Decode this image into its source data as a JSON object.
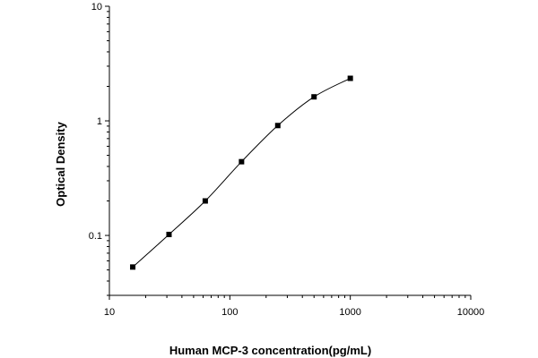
{
  "chart_data": {
    "type": "scatter",
    "title": "",
    "xlabel": "Human MCP-3 concentration(pg/mL)",
    "ylabel": "Optical Density",
    "x_scale": "log",
    "y_scale": "log",
    "xlim": [
      10,
      10000
    ],
    "ylim": [
      0.03,
      10
    ],
    "x_ticks": [
      10,
      100,
      1000,
      10000
    ],
    "x_tick_labels": [
      "10",
      "100",
      "1000",
      "10000"
    ],
    "y_ticks": [
      0.1,
      1,
      10
    ],
    "y_tick_labels": [
      "0.1",
      "1",
      "10"
    ],
    "grid": false,
    "legend": "none",
    "series": [
      {
        "marker": "square",
        "color": "#000000",
        "x": [
          15.63,
          31.25,
          62.5,
          125,
          250,
          500,
          1000
        ],
        "y": [
          0.053,
          0.102,
          0.2,
          0.44,
          0.91,
          1.62,
          2.35
        ]
      }
    ],
    "fit_curve": true
  }
}
